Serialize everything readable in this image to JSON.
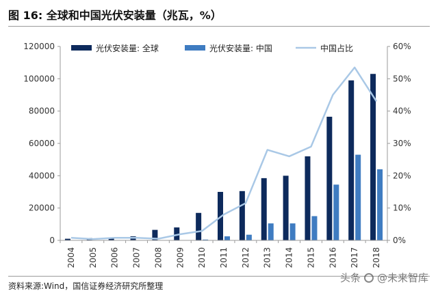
{
  "figure": {
    "title": "图 16:  全球和中国光伏安装量（兆瓦，%）",
    "source": "资料来源:Wind，国信证券经济研究所整理",
    "watermark_left": "头条",
    "watermark_right": "@未来智库"
  },
  "colors": {
    "global": "#0d2a5c",
    "china": "#3f7cc1",
    "share": "#a9c8e6",
    "axis": "#9a9a9a"
  },
  "chart_data": {
    "type": "bar",
    "categories": [
      "2004",
      "2005",
      "2006",
      "2007",
      "2008",
      "2009",
      "2010",
      "2011",
      "2012",
      "2013",
      "2014",
      "2015",
      "2016",
      "2017",
      "2018"
    ],
    "series": [
      {
        "name": "光伏安装量: 全球",
        "type": "bar",
        "axis": "left",
        "values": [
          1000,
          1400,
          1500,
          2500,
          6500,
          8000,
          17000,
          30000,
          30500,
          38500,
          40000,
          52000,
          76500,
          99000,
          103000
        ]
      },
      {
        "name": "光伏安装量: 中国",
        "type": "bar",
        "axis": "left",
        "values": [
          0,
          0,
          0,
          0,
          0,
          0,
          500,
          2500,
          3500,
          10500,
          10500,
          15000,
          34500,
          53000,
          44000
        ]
      },
      {
        "name": "中国占比",
        "type": "line",
        "axis": "right",
        "values": [
          0.8,
          0.4,
          0.8,
          0.8,
          0.5,
          1.9,
          2.9,
          8.0,
          11.5,
          28.0,
          26.0,
          29.0,
          45.0,
          53.5,
          43.0
        ]
      }
    ],
    "y_left": {
      "min": 0,
      "max": 120000,
      "ticks": [
        0,
        20000,
        40000,
        60000,
        80000,
        100000,
        120000
      ]
    },
    "y_right": {
      "min": 0,
      "max": 60,
      "ticks": [
        "0%",
        "10%",
        "20%",
        "30%",
        "40%",
        "50%",
        "60%"
      ]
    },
    "legend_position": "top",
    "grid": false
  }
}
